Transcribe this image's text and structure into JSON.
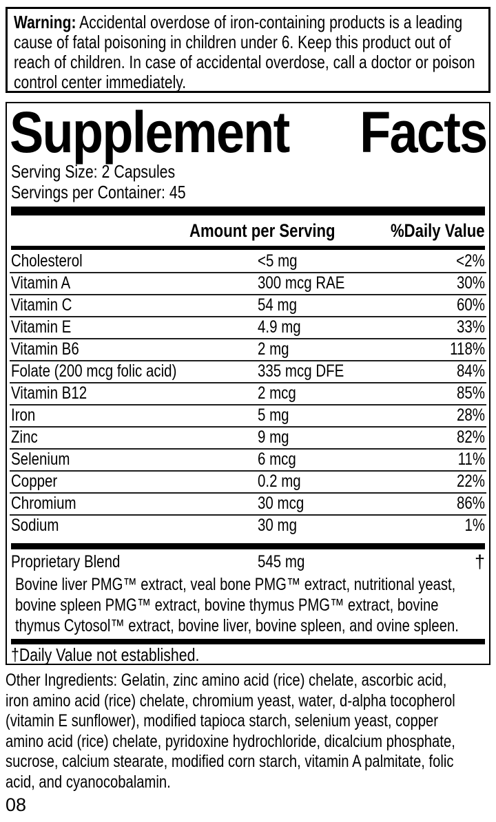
{
  "warning": {
    "label": "Warning:",
    "text": "Accidental overdose of iron-containing products is a leading\ncause of fatal poisoning in children under 6. Keep this product out of\nreach of children. In case of accidental overdose, call a doctor or poison\ncontrol center immediately."
  },
  "panel": {
    "title": {
      "word1": "Supplement",
      "word2": "Facts"
    },
    "serving_size": "Serving Size: 2 Capsules",
    "servings_per_container": "Servings per Container: 45",
    "header": {
      "amount": "Amount per Serving",
      "daily_value": "%Daily Value"
    },
    "rows": [
      {
        "name": "Cholesterol",
        "amount": "<5 mg",
        "dv": "<2%"
      },
      {
        "name": "Vitamin A",
        "amount": "300 mcg RAE",
        "dv": "30%"
      },
      {
        "name": "Vitamin C",
        "amount": "54 mg",
        "dv": "60%"
      },
      {
        "name": "Vitamin E",
        "amount": "4.9 mg",
        "dv": "33%"
      },
      {
        "name": "Vitamin B6",
        "amount": "2 mg",
        "dv": "118%"
      },
      {
        "name": "Folate (200 mcg folic acid)",
        "amount": "335 mcg DFE",
        "dv": "84%"
      },
      {
        "name": "Vitamin B12",
        "amount": "2 mcg",
        "dv": "85%"
      },
      {
        "name": "Iron",
        "amount": "5 mg",
        "dv": "28%"
      },
      {
        "name": "Zinc",
        "amount": "9 mg",
        "dv": "82%"
      },
      {
        "name": "Selenium",
        "amount": "6 mcg",
        "dv": "11%"
      },
      {
        "name": "Copper",
        "amount": "0.2 mg",
        "dv": "22%"
      },
      {
        "name": "Chromium",
        "amount": "30 mcg",
        "dv": "86%"
      },
      {
        "name": "Sodium",
        "amount": "30 mg",
        "dv": "1%"
      }
    ],
    "blend": {
      "name": "Proprietary Blend",
      "amount": "545 mg",
      "daily_value": "†",
      "description": "Bovine liver PMG™ extract, veal bone PMG™ extract, nutritional yeast,\nbovine spleen PMG™ extract, bovine thymus PMG™ extract, bovine\nthymus Cytosol™ extract, bovine liver, bovine spleen, and ovine spleen."
    },
    "footnote": "†Daily Value not established."
  },
  "other_ingredients": "Other Ingredients: Gelatin, zinc amino acid (rice) chelate, ascorbic acid,\niron amino acid (rice) chelate, chromium yeast, water, d-alpha tocopherol\n(vitamin E sunflower), modified tapioca starch, selenium yeast, copper\namino acid (rice) chelate, pyridoxine hydrochloride, dicalcium phosphate,\nsucrose, calcium stearate, modified corn starch, vitamin A palmitate, folic\nacid, and cyanocobalamin.",
  "page_code": "08"
}
